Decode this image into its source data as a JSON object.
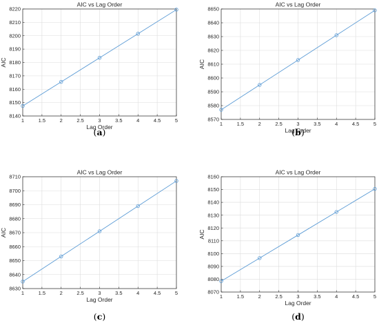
{
  "colors": {
    "line": "#5b9bd5",
    "axis": "#262626",
    "grid": "#dcdcdc",
    "background": "#ffffff"
  },
  "chart_data": [
    {
      "type": "line",
      "panel": "(a)",
      "title": "AIC vs Lag Order",
      "xlabel": "Lag Order",
      "ylabel": "AIC",
      "x": [
        1,
        2,
        3,
        4,
        5
      ],
      "series": [
        {
          "values": [
            8147.5,
            8165.5,
            8183.5,
            8201.5,
            8219.5
          ]
        }
      ],
      "xlim": [
        1,
        5
      ],
      "ylim": [
        8140,
        8220
      ],
      "xticks": [
        "1",
        "1.5",
        "2",
        "2.5",
        "3",
        "3.5",
        "4",
        "4.5",
        "5"
      ],
      "yticks": [
        "8140",
        "8150",
        "8160",
        "8170",
        "8180",
        "8190",
        "8200",
        "8210",
        "8220"
      ],
      "grid": true
    },
    {
      "type": "line",
      "panel": "(b)",
      "title": "AIC vs Lag Order",
      "xlabel": "Lag Order",
      "ylabel": "AIC",
      "x": [
        1,
        2,
        3,
        4,
        5
      ],
      "series": [
        {
          "values": [
            8577,
            8595,
            8613,
            8631,
            8649
          ]
        }
      ],
      "xlim": [
        1,
        5
      ],
      "ylim": [
        8570,
        8650
      ],
      "xticks": [
        "1",
        "1.5",
        "2",
        "2.5",
        "3",
        "3.5",
        "4",
        "4.5",
        "5"
      ],
      "yticks": [
        "8570",
        "8580",
        "8590",
        "8600",
        "8610",
        "8620",
        "8630",
        "8640",
        "8650"
      ],
      "grid": true
    },
    {
      "type": "line",
      "panel": "(c)",
      "title": "AIC vs Lag Order",
      "xlabel": "Lag Order",
      "ylabel": "AIC",
      "x": [
        1,
        2,
        3,
        4,
        5
      ],
      "series": [
        {
          "values": [
            8635,
            8653,
            8671,
            8689,
            8707
          ]
        }
      ],
      "xlim": [
        1,
        5
      ],
      "ylim": [
        8630,
        8710
      ],
      "xticks": [
        "1",
        "1.5",
        "2",
        "2.5",
        "3",
        "3.5",
        "4",
        "4.5",
        "5"
      ],
      "yticks": [
        "8630",
        "8640",
        "8650",
        "8660",
        "8670",
        "8680",
        "8690",
        "8700",
        "8710"
      ],
      "grid": true
    },
    {
      "type": "line",
      "panel": "(d)",
      "title": "AIC vs Lag Order",
      "xlabel": "Lag Order",
      "ylabel": "AIC",
      "x": [
        1,
        2,
        3,
        4,
        5
      ],
      "series": [
        {
          "values": [
            8078.5,
            8096.5,
            8114.5,
            8132.5,
            8150.5
          ]
        }
      ],
      "xlim": [
        1,
        5
      ],
      "ylim": [
        8070,
        8160
      ],
      "xticks": [
        "1",
        "1.5",
        "2",
        "2.5",
        "3",
        "3.5",
        "4",
        "4.5",
        "5"
      ],
      "yticks": [
        "8070",
        "8080",
        "8090",
        "8100",
        "8110",
        "8120",
        "8130",
        "8140",
        "8150",
        "8160"
      ],
      "grid": true
    }
  ]
}
